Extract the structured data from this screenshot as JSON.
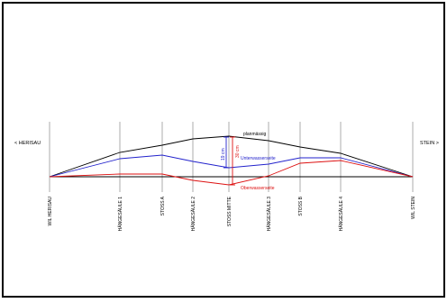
{
  "left_label": "< HERISAU",
  "right_label": "STEIN >",
  "stations": [
    {
      "id": "wil-herisau",
      "label": "WIL HERISAU"
    },
    {
      "id": "haengesaeule-1",
      "label": "HÄNGESÄULE 1"
    },
    {
      "id": "stoss-a",
      "label": "STOSS A"
    },
    {
      "id": "haengesaeule-2",
      "label": "HÄNGESÄULE 2"
    },
    {
      "id": "stoss-mitte",
      "label": "STOSS MITTE"
    },
    {
      "id": "haengesaeule-3",
      "label": "HÄNGESÄULE 3"
    },
    {
      "id": "stoss-b",
      "label": "STOSS B"
    },
    {
      "id": "haengesaeule-4",
      "label": "HÄNGESÄULE 4"
    },
    {
      "id": "wil-stein",
      "label": "WIL STEIN"
    }
  ],
  "curves": {
    "planmaessig": {
      "label": "planmässig",
      "color": "#000000"
    },
    "unterwasserseite": {
      "label": "Unterwasserseite",
      "color": "#2222cc"
    },
    "oberwasserseite": {
      "label": "Oberwasserseite",
      "color": "#dd1111"
    }
  },
  "dimensions": {
    "upper": {
      "label": "19 cm",
      "color": "#2222cc"
    },
    "lower": {
      "label": "30 cm",
      "color": "#dd1111"
    }
  },
  "colors": {
    "border": "#000000",
    "baseline": "#000000",
    "station_line": "#888888"
  }
}
